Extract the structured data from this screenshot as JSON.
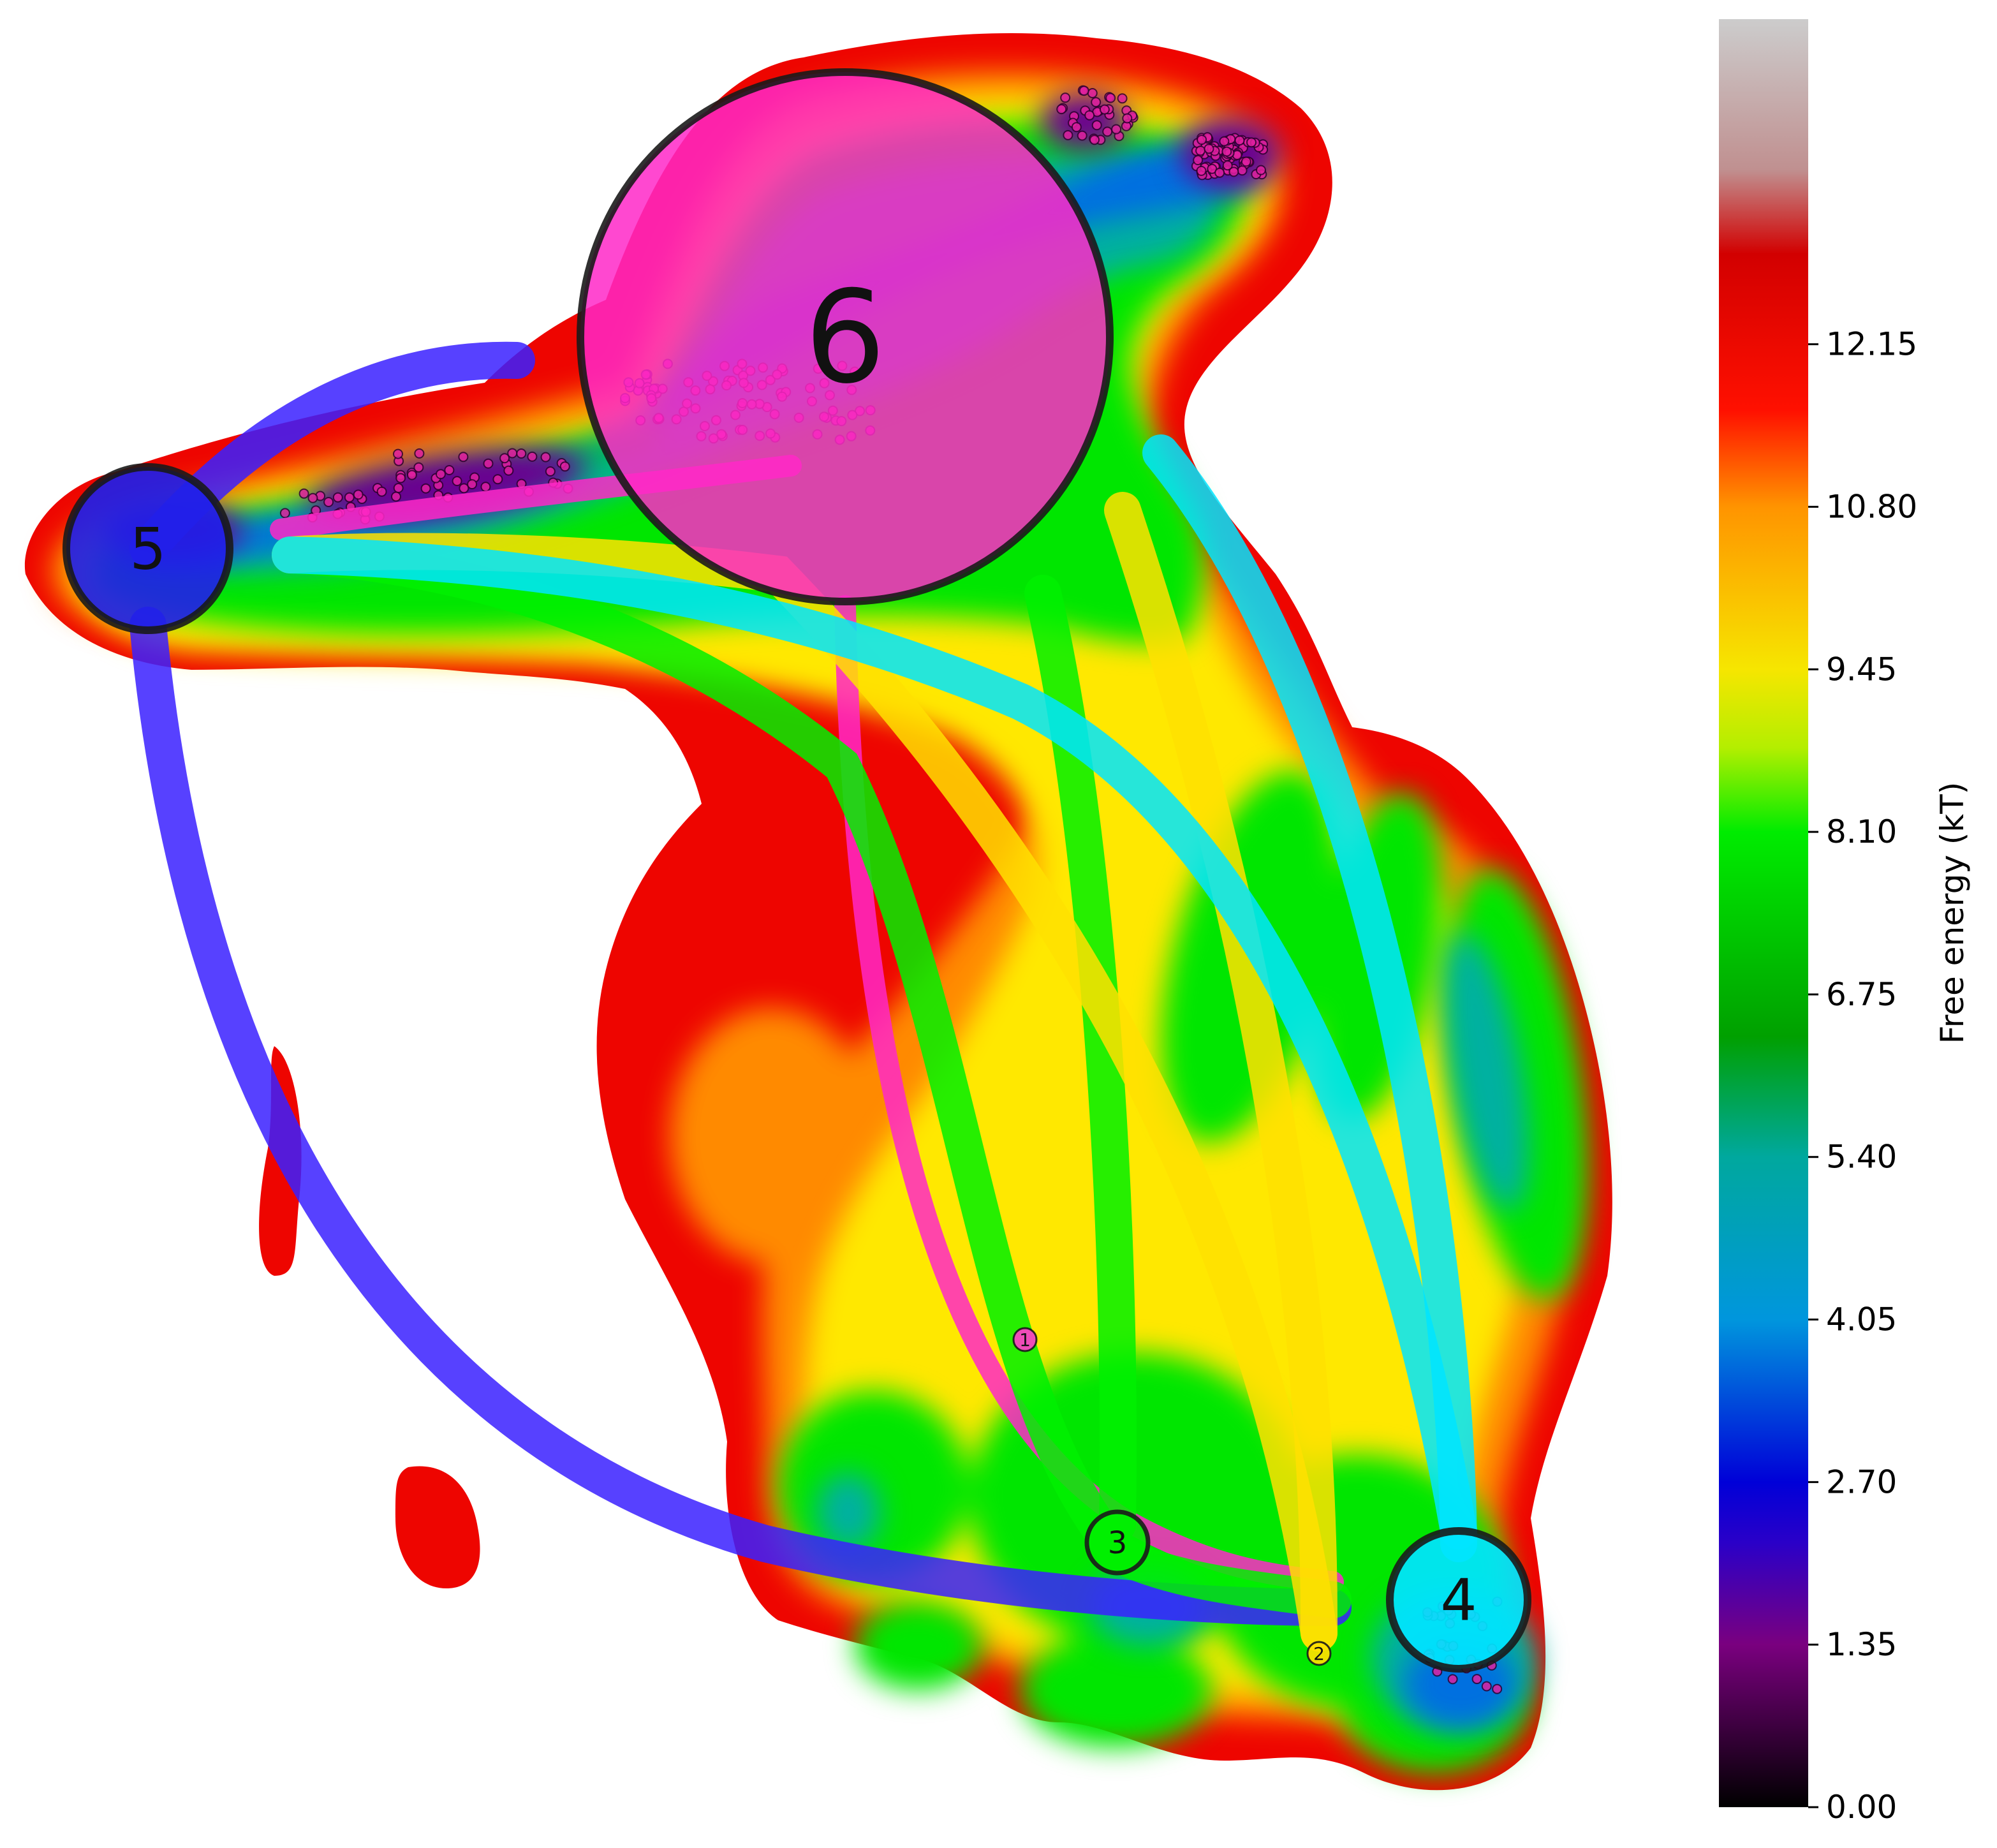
{
  "chart_data": {
    "type": "network",
    "subtype": "free-energy landscape with Markov-state transition network",
    "title": "",
    "xlabel": "",
    "ylabel": "",
    "colorbar": {
      "label": "Free energy (kT)",
      "range": [
        0,
        14.85
      ],
      "ticks": [
        "0.00",
        "1.35",
        "2.70",
        "4.05",
        "5.40",
        "6.75",
        "8.10",
        "9.45",
        "10.80",
        "12.15"
      ],
      "tick_values": [
        0,
        1.35,
        2.7,
        4.05,
        5.4,
        6.75,
        8.1,
        9.45,
        10.8,
        12.15
      ],
      "colormap": [
        {
          "v": 0.0,
          "color": "#000000"
        },
        {
          "v": 1.35,
          "color": "#7a007f"
        },
        {
          "v": 2.2,
          "color": "#2a00c8"
        },
        {
          "v": 2.7,
          "color": "#0000d8"
        },
        {
          "v": 4.05,
          "color": "#0096dd"
        },
        {
          "v": 5.4,
          "color": "#00a89e"
        },
        {
          "v": 6.4,
          "color": "#00a000"
        },
        {
          "v": 8.1,
          "color": "#00ec00"
        },
        {
          "v": 8.8,
          "color": "#b4ee00"
        },
        {
          "v": 9.45,
          "color": "#f6e600"
        },
        {
          "v": 10.8,
          "color": "#ff9400"
        },
        {
          "v": 11.6,
          "color": "#ff1000"
        },
        {
          "v": 12.9,
          "color": "#d20000"
        },
        {
          "v": 13.6,
          "color": "#c09090"
        },
        {
          "v": 14.85,
          "color": "#cccccc"
        }
      ]
    },
    "nodes": [
      {
        "id": "1",
        "label": "1",
        "color": "#ff3ec8",
        "size": "tiny"
      },
      {
        "id": "2",
        "label": "2",
        "color": "#ffe000",
        "size": "tiny"
      },
      {
        "id": "3",
        "label": "3",
        "color": "#00f000",
        "size": "small"
      },
      {
        "id": "4",
        "label": "4",
        "color": "#00e5ff",
        "size": "medium"
      },
      {
        "id": "5",
        "label": "5",
        "color": "#2020e8",
        "size": "medium"
      },
      {
        "id": "6",
        "label": "6",
        "color": "#ff28c8",
        "size": "large"
      }
    ],
    "edges": [
      {
        "from": "5",
        "to": "6",
        "color": "#3a20ff"
      },
      {
        "from": "5",
        "to": "3",
        "color": "#3a20ff"
      },
      {
        "from": "6",
        "to": "5",
        "color": "#ff28c8"
      },
      {
        "from": "6",
        "to": "3",
        "color": "#ff28c8"
      },
      {
        "from": "3",
        "to": "5",
        "color": "#00f000"
      },
      {
        "from": "3",
        "to": "6",
        "color": "#00f000"
      },
      {
        "from": "2",
        "to": "5",
        "color": "#ffe000"
      },
      {
        "from": "2",
        "to": "6",
        "color": "#ffe000"
      },
      {
        "from": "4",
        "to": "5",
        "color": "#00e5ff"
      },
      {
        "from": "4",
        "to": "6",
        "color": "#00e5ff"
      }
    ]
  }
}
